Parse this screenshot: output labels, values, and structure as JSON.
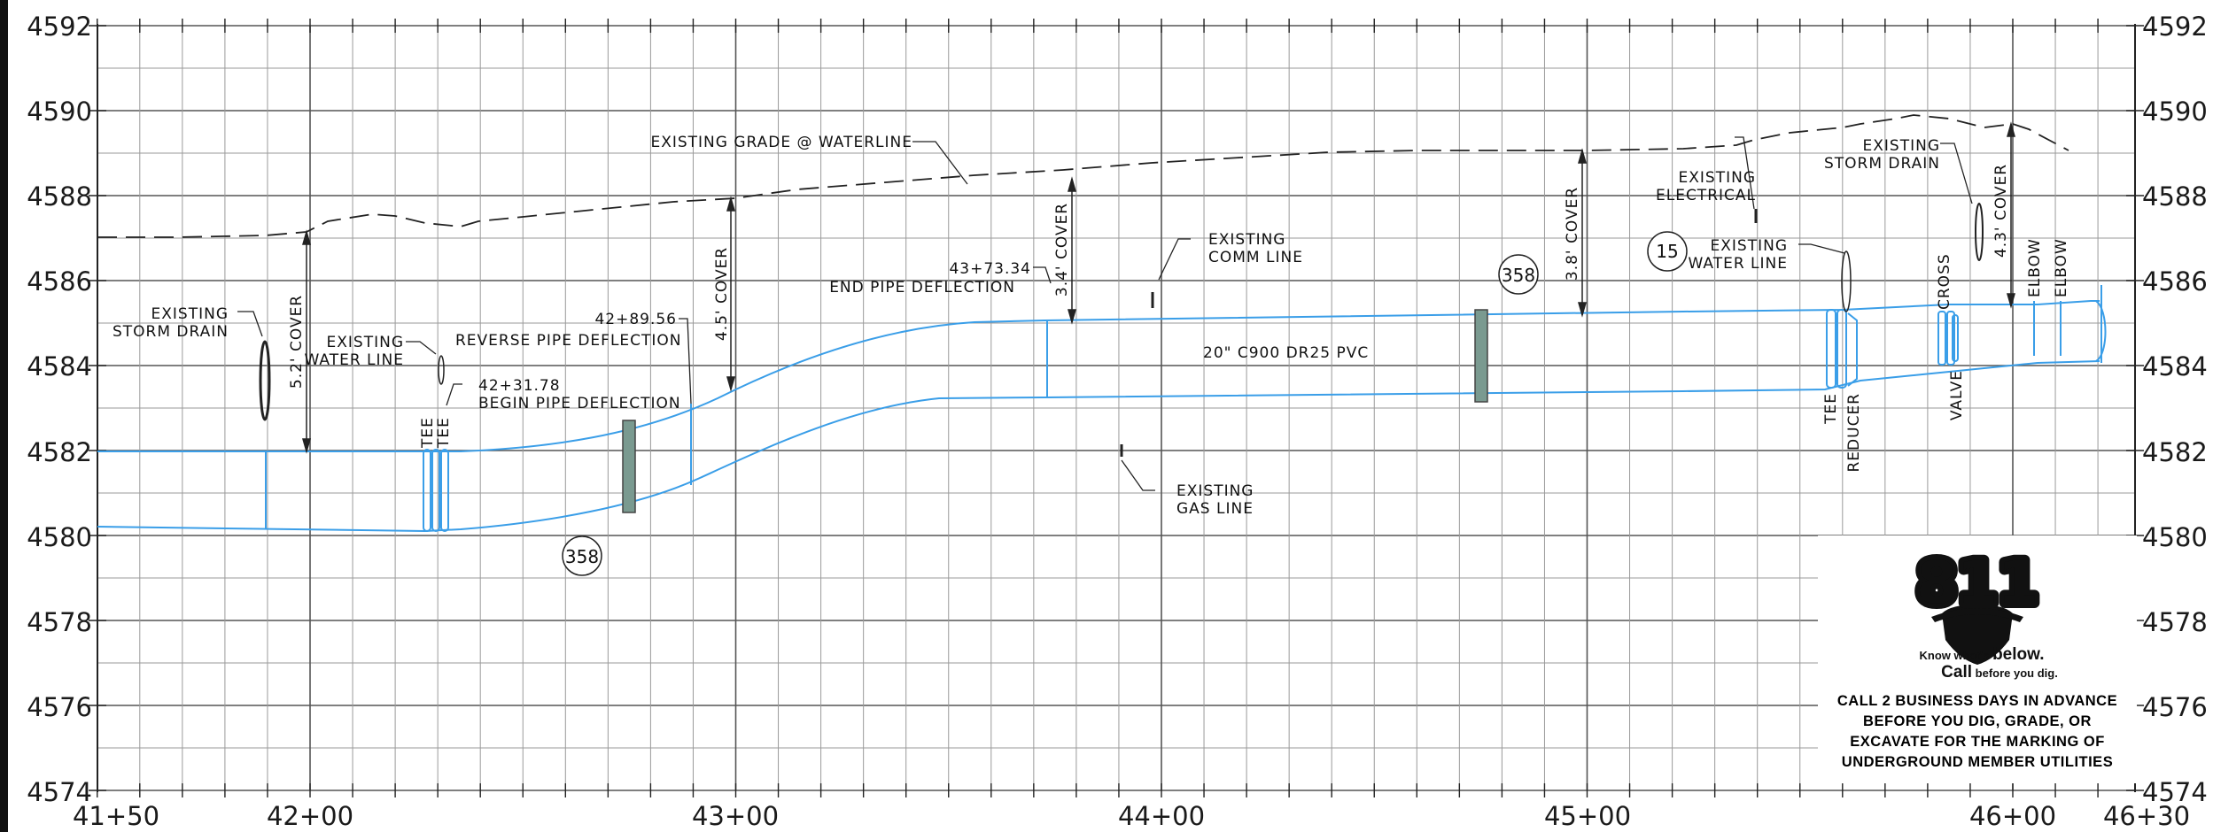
{
  "drawing": {
    "y_axis": {
      "ticks": [
        "4592",
        "4590",
        "4588",
        "4586",
        "4584",
        "4582",
        "4580",
        "4578",
        "4576",
        "4574"
      ],
      "values": [
        4592,
        4590,
        4588,
        4586,
        4584,
        4582,
        4580,
        4578,
        4576,
        4574
      ]
    },
    "x_axis": {
      "ticks": [
        "41+50",
        "42+00",
        "43+00",
        "44+00",
        "45+00",
        "46+00",
        "46+30"
      ],
      "stations_ft": [
        4150,
        4200,
        4300,
        4400,
        4500,
        4600,
        4630
      ]
    },
    "annotations": {
      "existing_grade": "EXISTING GRADE @ WATERLINE",
      "storm_drain_left_1": "EXISTING",
      "storm_drain_left_2": "STORM DRAIN",
      "cover_52": "5.2' COVER",
      "water_line_left_1": "EXISTING",
      "water_line_left_2": "WATER LINE",
      "reverse_pipe": "REVERSE PIPE DEFLECTION",
      "sta_4231": "42+31.78",
      "begin_pipe": "BEGIN PIPE DEFLECTION",
      "sta_4289": "42+89.56",
      "cover_45": "4.5' COVER",
      "sta_4373": "43+73.34",
      "end_pipe": "END PIPE DEFLECTION",
      "cover_34": "3.4' COVER",
      "comm_line_1": "EXISTING",
      "comm_line_2": "COMM LINE",
      "pipe_spec": "20\" C900 DR25 PVC",
      "gas_line_1": "EXISTING",
      "gas_line_2": "GAS LINE",
      "cover_38": "3.8' COVER",
      "electrical_1": "EXISTING",
      "electrical_2": "ELECTRICAL",
      "water_line_right_1": "EXISTING",
      "water_line_right_2": "WATER LINE",
      "storm_drain_right_1": "EXISTING",
      "storm_drain_right_2": "STORM DRAIN",
      "cover_43": "4.3' COVER",
      "tee_1": "TEE",
      "tee_2": "TEE",
      "tee_3": "TEE",
      "reducer": "REDUCER",
      "cross": "CROSS",
      "valve": "VALVE",
      "elbow_1": "ELBOW",
      "elbow_2": "ELBOW",
      "bubble_358_a": "358",
      "bubble_358_b": "358",
      "bubble_15": "15"
    },
    "notice_811": {
      "logo": "811",
      "tag1_small": "Know what's ",
      "tag1_big": "below.",
      "tag2_big": "Call",
      "tag2_small": " before you dig.",
      "lines": [
        "CALL 2 BUSINESS DAYS IN ADVANCE",
        "BEFORE YOU DIG, GRADE, OR",
        "EXCAVATE FOR THE MARKING OF",
        "UNDERGROUND MEMBER UTILITIES"
      ]
    },
    "colors": {
      "pipe": "#3a9ee8",
      "fitting_fill": "#7a9a90",
      "grid": "#9a9a9a",
      "grid_major": "#555555"
    }
  }
}
